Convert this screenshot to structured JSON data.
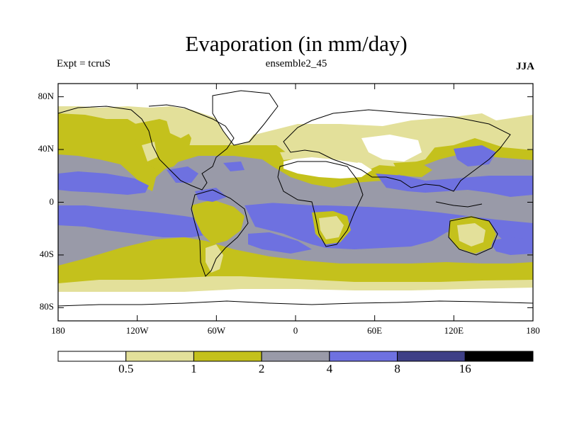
{
  "title": "Evaporation (in mm/day)",
  "subtitle_left": "Expt = tcruS",
  "subtitle_center": "ensemble2_45",
  "subtitle_right": "JJA",
  "lat_ticks": [
    {
      "label": "80N",
      "lat": 80
    },
    {
      "label": "40N",
      "lat": 40
    },
    {
      "label": "0",
      "lat": 0
    },
    {
      "label": "40S",
      "lat": -40
    },
    {
      "label": "80S",
      "lat": -80
    }
  ],
  "lon_ticks": [
    {
      "label": "180",
      "lon": -180
    },
    {
      "label": "120W",
      "lon": -120
    },
    {
      "label": "60W",
      "lon": -60
    },
    {
      "label": "0",
      "lon": 0
    },
    {
      "label": "60E",
      "lon": 60
    },
    {
      "label": "120E",
      "lon": 120
    },
    {
      "label": "180",
      "lon": 180
    }
  ],
  "colors": {
    "lt_0_5": "#ffffff",
    "c_0_5_1": "#e3e09a",
    "c_1_2": "#c4c11c",
    "c_2_4": "#999aa8",
    "c_4_8": "#6e71e0",
    "c_8_16": "#3e3f86",
    "gt_16": "#000000"
  },
  "colorbar": {
    "bins": [
      "#ffffff",
      "#e3e09a",
      "#c4c11c",
      "#999aa8",
      "#6e71e0",
      "#3e3f86",
      "#000000"
    ],
    "labels": [
      "0.5",
      "1",
      "2",
      "4",
      "8",
      "16"
    ]
  }
}
